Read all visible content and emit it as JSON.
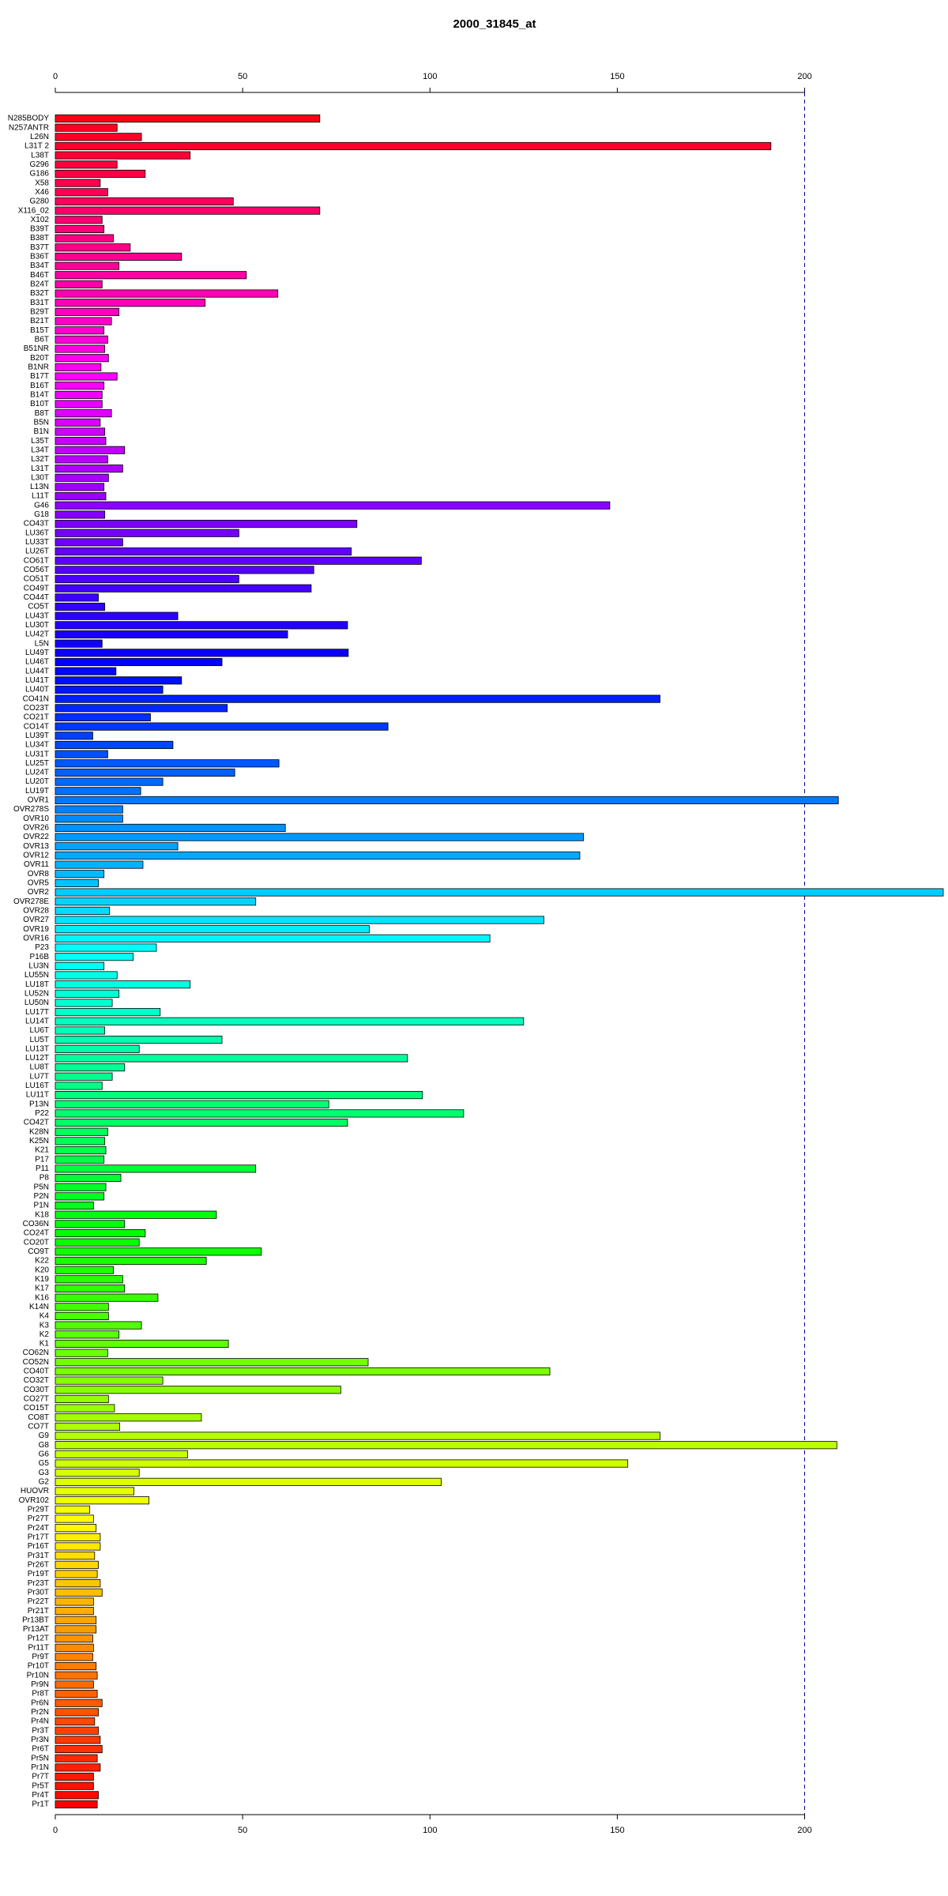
{
  "chart_data": {
    "type": "barh",
    "title": "2000_31845_at",
    "categories": [
      "N285BODY",
      "N257ANTR",
      "L26N",
      "L31T 2",
      "L38T",
      "G296",
      "G186",
      "X58",
      "X46",
      "G280",
      "X116_02",
      "X102",
      "B39T",
      "B38T",
      "B37T",
      "B36T",
      "B34T",
      "B46T",
      "B24T",
      "B32T",
      "B31T",
      "B29T",
      "B21T",
      "B15T",
      "B6T",
      "B51NR",
      "B20T",
      "B1NR",
      "B17T",
      "B16T",
      "B14T",
      "B10T",
      "B8T",
      "B5N",
      "B1N",
      "L35T",
      "L34T",
      "L32T",
      "L31T",
      "L30T",
      "L13N",
      "L11T",
      "G46",
      "G18",
      "CO43T",
      "LU36T",
      "LU33T",
      "LU26T",
      "CO61T",
      "CO56T",
      "CO51T",
      "CO49T",
      "CO44T",
      "CO5T",
      "LU43T",
      "LU30T",
      "LU42T",
      "L5N",
      "LU49T",
      "LU46T",
      "LU44T",
      "LU41T",
      "LU40T",
      "CO41N",
      "CO23T",
      "CO21T",
      "CO14T",
      "LU39T",
      "LU34T",
      "LU31T",
      "LU25T",
      "LU24T",
      "LU20T",
      "LU19T",
      "OVR1",
      "OVR278S",
      "OVR10",
      "OVR26",
      "OVR22",
      "OVR13",
      "OVR12",
      "OVR11",
      "OVR8",
      "OVR5",
      "OVR2",
      "OVR278E",
      "OVR28",
      "OVR27",
      "OVR19",
      "OVR16",
      "P23",
      "P16B",
      "LU3N",
      "LU55N",
      "LU18T",
      "LU52N",
      "LU50N",
      "LU17T",
      "LU14T",
      "LU6T",
      "LU5T",
      "LU13T",
      "LU12T",
      "LU8T",
      "LU7T",
      "LU16T",
      "LU11T",
      "P13N",
      "P22",
      "CO42T",
      "K28N",
      "K25N",
      "K21",
      "P17",
      "P11",
      "P8",
      "P5N",
      "P2N",
      "P1N",
      "K18",
      "CO36N",
      "CO24T",
      "CO20T",
      "CO9T",
      "K22",
      "K20",
      "K19",
      "K17",
      "K16",
      "K14N",
      "K4",
      "K3",
      "K2",
      "K1",
      "CO62N",
      "CO52N",
      "CO40T",
      "CO32T",
      "CO30T",
      "CO27T",
      "CO15T",
      "CO8T",
      "CO7T",
      "G9",
      "G8",
      "G6",
      "G5",
      "G3",
      "G2",
      "HUOVR",
      "OVR102",
      "Pr29T",
      "Pr27T",
      "Pr24T",
      "Pr17T",
      "Pr16T",
      "Pr31T",
      "Pr26T",
      "Pr19T",
      "Pr23T",
      "Pr30T",
      "Pr22T",
      "Pr21T",
      "Pr13BT",
      "Pr13AT",
      "Pr12T",
      "Pr11T",
      "Pr9T",
      "Pr10T",
      "Pr10N",
      "Pr9N",
      "Pr8T",
      "Pr6N",
      "Pr2N",
      "Pr4N",
      "Pr3T",
      "Pr3N",
      "Pr6T",
      "Pr5N",
      "Pr1N",
      "Pr7T",
      "Pr5T",
      "Pr4T",
      "Pr1T"
    ],
    "values": [
      70.6,
      16.5,
      23,
      191,
      36,
      16.5,
      24,
      12,
      14,
      47.5,
      70.6,
      12.5,
      13,
      15.5,
      20,
      33.7,
      17,
      51,
      12.5,
      59.4,
      40,
      17,
      15,
      13,
      14,
      13.2,
      14.2,
      12.2,
      16.5,
      13,
      12.5,
      12.5,
      15,
      12,
      13.2,
      13.5,
      18.5,
      14,
      18,
      14.2,
      13,
      13.5,
      148,
      13.2,
      80.5,
      49,
      18,
      79,
      97.7,
      69,
      49,
      68.3,
      11.5,
      13.2,
      32.7,
      78,
      62,
      12.5,
      78.2,
      44.5,
      16.2,
      33.7,
      28.7,
      161.4,
      45.9,
      25.4,
      88.8,
      10,
      31.4,
      14,
      59.7,
      47.9,
      28.7,
      22.8,
      209,
      18,
      18,
      61.4,
      141,
      32.7,
      140,
      23.4,
      13,
      11.5,
      237,
      53.5,
      14.5,
      130.4,
      83.8,
      116,
      27,
      20.8,
      13,
      16.5,
      36,
      17,
      15.2,
      28,
      125,
      13.2,
      44.5,
      22.4,
      94,
      18.5,
      15.2,
      12.5,
      98,
      73,
      109,
      78,
      14,
      13.2,
      13.5,
      13,
      53.5,
      17.5,
      13.5,
      13,
      10.2,
      43,
      18.5,
      24,
      22.4,
      55,
      40.3,
      15.5,
      18,
      18.5,
      27.4,
      14.2,
      14.2,
      23,
      17,
      46.2,
      14,
      83.5,
      132,
      28.7,
      76.2,
      14.2,
      15.8,
      39,
      17.2,
      161.4,
      208.6,
      35.3,
      152.8,
      22.4,
      103,
      21,
      25,
      9.2,
      10.2,
      10.9,
      12,
      12,
      10.5,
      11.5,
      11.2,
      12,
      12.5,
      10.2,
      10.2,
      10.9,
      10.9,
      10,
      10.2,
      10,
      10.9,
      11.2,
      10.2,
      11.2,
      12.5,
      11.5,
      10.5,
      11.5,
      12,
      12.5,
      11.2,
      12,
      10.2,
      10.2,
      11.5,
      11.2
    ],
    "colors": [
      "#ff0015",
      "#ff001e",
      "#ff0026",
      "#ff002e",
      "#ff0036",
      "#ff003f",
      "#ff0047",
      "#ff004f",
      "#ff0057",
      "#ff0060",
      "#ff0068",
      "#ff0070",
      "#ff0078",
      "#ff0081",
      "#ff0089",
      "#ff0091",
      "#ff0099",
      "#ff00a1",
      "#ff00aa",
      "#ff00b2",
      "#ff00ba",
      "#ff00c2",
      "#ff00cb",
      "#ff00d3",
      "#ff00db",
      "#ff00e3",
      "#ff00ec",
      "#ff00f4",
      "#ff00fc",
      "#fa00ff",
      "#f100ff",
      "#e900ff",
      "#e100ff",
      "#d900ff",
      "#d000ff",
      "#c800ff",
      "#c000ff",
      "#b800ff",
      "#af00ff",
      "#a700ff",
      "#9f00ff",
      "#9700ff",
      "#8e00ff",
      "#8600ff",
      "#7e00ff",
      "#7600ff",
      "#6d00ff",
      "#6500ff",
      "#5d00ff",
      "#5500ff",
      "#4c00ff",
      "#4400ff",
      "#3c00ff",
      "#3400ff",
      "#2c00ff",
      "#2300ff",
      "#1b00ff",
      "#1300ff",
      "#0b00ff",
      "#0200ff",
      "#0006ff",
      "#000eff",
      "#0016ff",
      "#001fff",
      "#0027ff",
      "#002fff",
      "#0037ff",
      "#0040ff",
      "#0048ff",
      "#0050ff",
      "#0058ff",
      "#0061ff",
      "#0069ff",
      "#0071ff",
      "#0079ff",
      "#0082ff",
      "#008aff",
      "#0092ff",
      "#009aff",
      "#00a3ff",
      "#00abff",
      "#00b3ff",
      "#00bbff",
      "#00c4ff",
      "#00ccff",
      "#00d4ff",
      "#00dcff",
      "#00e5ff",
      "#00edff",
      "#00f5ff",
      "#00fdff",
      "#00fff8",
      "#00fff0",
      "#00ffe8",
      "#00ffe0",
      "#00ffd7",
      "#00ffcf",
      "#00ffc7",
      "#00ffbf",
      "#00ffb6",
      "#00ffae",
      "#00ffa6",
      "#00ff9e",
      "#00ff95",
      "#00ff8d",
      "#00ff85",
      "#00ff7d",
      "#00ff74",
      "#00ff6c",
      "#00ff64",
      "#00ff5c",
      "#00ff54",
      "#00ff4b",
      "#00ff43",
      "#00ff3b",
      "#00ff33",
      "#00ff2a",
      "#00ff22",
      "#00ff1a",
      "#00ff12",
      "#00ff09",
      "#00ff01",
      "#07ff00",
      "#0fff00",
      "#18ff00",
      "#20ff00",
      "#28ff00",
      "#30ff00",
      "#39ff00",
      "#41ff00",
      "#49ff00",
      "#51ff00",
      "#5aff00",
      "#62ff00",
      "#6aff00",
      "#72ff00",
      "#7bff00",
      "#83ff00",
      "#8bff00",
      "#93ff00",
      "#9cff00",
      "#a4ff00",
      "#acff00",
      "#b4ff00",
      "#bcff00",
      "#c5ff00",
      "#cdff00",
      "#d5ff00",
      "#ddff00",
      "#e6ff00",
      "#eeff00",
      "#f6ff00",
      "#feff00",
      "#fff700",
      "#ffef00",
      "#ffe700",
      "#ffdf00",
      "#ffd600",
      "#ffce00",
      "#ffc600",
      "#ffbe00",
      "#ffb500",
      "#ffad00",
      "#ffa500",
      "#ff9d00",
      "#ff9400",
      "#ff8c00",
      "#ff8400",
      "#ff7c00",
      "#ff7300",
      "#ff6b00",
      "#ff6300",
      "#ff5b00",
      "#ff5200",
      "#ff4a00",
      "#ff4200",
      "#ff3a00",
      "#ff3100",
      "#ff2900",
      "#ff2100",
      "#ff1900",
      "#ff1000",
      "#ff0800",
      "#ff0000"
    ],
    "xlim": [
      0,
      237
    ],
    "xticks": [
      0,
      50,
      100,
      150,
      200
    ],
    "vline": 200
  }
}
